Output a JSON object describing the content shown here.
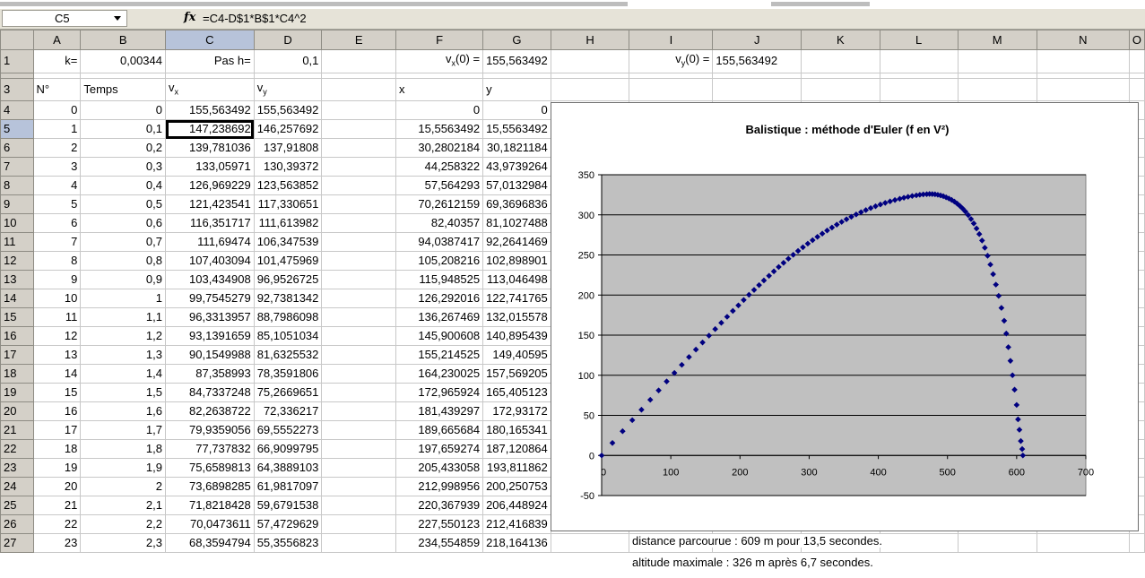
{
  "formula_bar": {
    "cell_ref": "C5",
    "fx_label": "fx",
    "formula": "=C4-D$1*B$1*C4^2"
  },
  "columns": [
    "A",
    "B",
    "C",
    "D",
    "E",
    "F",
    "G",
    "H",
    "I",
    "J",
    "K",
    "L",
    "M",
    "N",
    "O"
  ],
  "row1": {
    "label_k": "k=",
    "value_k": "0,00344",
    "label_h": "Pas h=",
    "value_h": "0,1",
    "label_vx0": "vx(0) =",
    "value_vx0": "155,563492",
    "label_vy0": "vy(0) =",
    "value_vy0": "155,563492"
  },
  "headers": {
    "n": "N°",
    "temps": "Temps",
    "vx": "vx",
    "vy": "vy",
    "x": "x",
    "y": "y"
  },
  "rows": [
    {
      "r": "4",
      "n": "0",
      "t": "0",
      "vx": "155,563492",
      "vy": "155,563492",
      "x": "0",
      "y": "0"
    },
    {
      "r": "5",
      "n": "1",
      "t": "0,1",
      "vx": "147,238692",
      "vy": "146,257692",
      "x": "15,5563492",
      "y": "15,5563492"
    },
    {
      "r": "6",
      "n": "2",
      "t": "0,2",
      "vx": "139,781036",
      "vy": "137,91808",
      "x": "30,2802184",
      "y": "30,1821184"
    },
    {
      "r": "7",
      "n": "3",
      "t": "0,3",
      "vx": "133,05971",
      "vy": "130,39372",
      "x": "44,258322",
      "y": "43,9739264"
    },
    {
      "r": "8",
      "n": "4",
      "t": "0,4",
      "vx": "126,969229",
      "vy": "123,563852",
      "x": "57,564293",
      "y": "57,0132984"
    },
    {
      "r": "9",
      "n": "5",
      "t": "0,5",
      "vx": "121,423541",
      "vy": "117,330651",
      "x": "70,2612159",
      "y": "69,3696836"
    },
    {
      "r": "10",
      "n": "6",
      "t": "0,6",
      "vx": "116,351717",
      "vy": "111,613982",
      "x": "82,40357",
      "y": "81,1027488"
    },
    {
      "r": "11",
      "n": "7",
      "t": "0,7",
      "vx": "111,69474",
      "vy": "106,347539",
      "x": "94,0387417",
      "y": "92,2641469"
    },
    {
      "r": "12",
      "n": "8",
      "t": "0,8",
      "vx": "107,403094",
      "vy": "101,475969",
      "x": "105,208216",
      "y": "102,898901"
    },
    {
      "r": "13",
      "n": "9",
      "t": "0,9",
      "vx": "103,434908",
      "vy": "96,9526725",
      "x": "115,948525",
      "y": "113,046498"
    },
    {
      "r": "14",
      "n": "10",
      "t": "1",
      "vx": "99,7545279",
      "vy": "92,7381342",
      "x": "126,292016",
      "y": "122,741765"
    },
    {
      "r": "15",
      "n": "11",
      "t": "1,1",
      "vx": "96,3313957",
      "vy": "88,7986098",
      "x": "136,267469",
      "y": "132,015578"
    },
    {
      "r": "16",
      "n": "12",
      "t": "1,2",
      "vx": "93,1391659",
      "vy": "85,1051034",
      "x": "145,900608",
      "y": "140,895439"
    },
    {
      "r": "17",
      "n": "13",
      "t": "1,3",
      "vx": "90,1549988",
      "vy": "81,6325532",
      "x": "155,214525",
      "y": "149,40595"
    },
    {
      "r": "18",
      "n": "14",
      "t": "1,4",
      "vx": "87,358993",
      "vy": "78,3591806",
      "x": "164,230025",
      "y": "157,569205"
    },
    {
      "r": "19",
      "n": "15",
      "t": "1,5",
      "vx": "84,7337248",
      "vy": "75,2669651",
      "x": "172,965924",
      "y": "165,405123"
    },
    {
      "r": "20",
      "n": "16",
      "t": "1,6",
      "vx": "82,2638722",
      "vy": "72,336217",
      "x": "181,439297",
      "y": "172,93172"
    },
    {
      "r": "21",
      "n": "17",
      "t": "1,7",
      "vx": "79,9359056",
      "vy": "69,5552273",
      "x": "189,665684",
      "y": "180,165341"
    },
    {
      "r": "22",
      "n": "18",
      "t": "1,8",
      "vx": "77,737832",
      "vy": "66,9099795",
      "x": "197,659274",
      "y": "187,120864"
    },
    {
      "r": "23",
      "n": "19",
      "t": "1,9",
      "vx": "75,6589813",
      "vy": "64,3889103",
      "x": "205,433058",
      "y": "193,811862"
    },
    {
      "r": "24",
      "n": "20",
      "t": "2",
      "vx": "73,6898285",
      "vy": "61,9817097",
      "x": "212,998956",
      "y": "200,250753"
    },
    {
      "r": "25",
      "n": "21",
      "t": "2,1",
      "vx": "71,8218428",
      "vy": "59,6791538",
      "x": "220,367939",
      "y": "206,448924"
    },
    {
      "r": "26",
      "n": "22",
      "t": "2,2",
      "vx": "70,0473611",
      "vy": "57,4729629",
      "x": "227,550123",
      "y": "212,416839"
    },
    {
      "r": "27",
      "n": "23",
      "t": "2,3",
      "vx": "68,3594794",
      "vy": "55,3556823",
      "x": "234,554859",
      "y": "218,164136"
    }
  ],
  "notes": {
    "distance": "distance parcourue : 609 m pour 13,5 secondes.",
    "altitude": "altitude maximale : 326 m après 6,7 secondes."
  },
  "chart_data": {
    "type": "scatter",
    "title": "Balistique : méthode d'Euler (f en V²)",
    "xlim": [
      0,
      700
    ],
    "ylim": [
      -50,
      350
    ],
    "x_ticks": [
      "100",
      "200",
      "300",
      "400",
      "500",
      "600",
      "700"
    ],
    "y_ticks": [
      "-50",
      "0",
      "50",
      "100",
      "150",
      "200",
      "250",
      "300",
      "350"
    ],
    "x_axis_origin_label": "0",
    "grid": "horizontal",
    "plot_background": "#c0c0c0",
    "marker_color": "#000080",
    "points": [
      [
        0,
        0
      ],
      [
        15.6,
        15.6
      ],
      [
        30.3,
        30.2
      ],
      [
        44.3,
        44.0
      ],
      [
        57.6,
        57.0
      ],
      [
        70.3,
        69.4
      ],
      [
        82.4,
        81.1
      ],
      [
        94.0,
        92.3
      ],
      [
        105.2,
        102.9
      ],
      [
        115.9,
        113.0
      ],
      [
        126.3,
        122.7
      ],
      [
        136.3,
        132.0
      ],
      [
        145.9,
        140.9
      ],
      [
        155.2,
        149.4
      ],
      [
        164.2,
        157.6
      ],
      [
        173.0,
        165.4
      ],
      [
        181.4,
        172.9
      ],
      [
        189.7,
        180.2
      ],
      [
        197.7,
        187.1
      ],
      [
        205.4,
        193.8
      ],
      [
        213.0,
        200.3
      ],
      [
        220.4,
        206.4
      ],
      [
        227.6,
        212.4
      ],
      [
        234.6,
        218.2
      ],
      [
        242.0,
        224.0
      ],
      [
        249.0,
        229.5
      ],
      [
        256.0,
        235.0
      ],
      [
        263.0,
        240.2
      ],
      [
        270.0,
        245.3
      ],
      [
        277.0,
        250.2
      ],
      [
        284.0,
        255.0
      ],
      [
        291.0,
        259.6
      ],
      [
        298.0,
        264.1
      ],
      [
        305.0,
        268.4
      ],
      [
        312.0,
        272.6
      ],
      [
        319.0,
        276.6
      ],
      [
        326.0,
        280.5
      ],
      [
        333.0,
        284.2
      ],
      [
        340.0,
        287.8
      ],
      [
        347.0,
        291.2
      ],
      [
        354.0,
        294.5
      ],
      [
        361.0,
        297.6
      ],
      [
        368.0,
        300.5
      ],
      [
        375.0,
        303.3
      ],
      [
        382.0,
        305.9
      ],
      [
        389.0,
        308.4
      ],
      [
        396.0,
        310.7
      ],
      [
        403.0,
        312.9
      ],
      [
        410.0,
        314.9
      ],
      [
        417.0,
        316.8
      ],
      [
        424.0,
        318.5
      ],
      [
        431.0,
        320.0
      ],
      [
        437.0,
        321.3
      ],
      [
        443.0,
        322.5
      ],
      [
        449.0,
        323.5
      ],
      [
        455.0,
        324.3
      ],
      [
        460.0,
        325.0
      ],
      [
        465.0,
        325.5
      ],
      [
        470.0,
        325.8
      ],
      [
        474.0,
        326.0
      ],
      [
        478.0,
        325.9
      ],
      [
        482.0,
        325.6
      ],
      [
        486.0,
        325.0
      ],
      [
        490.0,
        324.2
      ],
      [
        494.0,
        323.2
      ],
      [
        498.0,
        321.9
      ],
      [
        502.0,
        320.4
      ],
      [
        506.0,
        318.6
      ],
      [
        510.0,
        316.5
      ],
      [
        514.0,
        314.0
      ],
      [
        518.0,
        311.1
      ],
      [
        522.0,
        307.8
      ],
      [
        526.0,
        304.0
      ],
      [
        530.0,
        299.7
      ],
      [
        534.0,
        294.8
      ],
      [
        538.0,
        289.3
      ],
      [
        542.0,
        283.0
      ],
      [
        546.0,
        276.0
      ],
      [
        550.0,
        268.0
      ],
      [
        554.0,
        259.0
      ],
      [
        558.0,
        249.0
      ],
      [
        562.0,
        238.0
      ],
      [
        566.0,
        226.0
      ],
      [
        570.0,
        213.0
      ],
      [
        574.0,
        199.0
      ],
      [
        578.0,
        184.0
      ],
      [
        582.0,
        168.0
      ],
      [
        585.0,
        152.0
      ],
      [
        588.0,
        135.0
      ],
      [
        591.0,
        118.0
      ],
      [
        594.0,
        100.0
      ],
      [
        597.0,
        82.0
      ],
      [
        600.0,
        63.0
      ],
      [
        602.0,
        45.0
      ],
      [
        604.0,
        32.0
      ],
      [
        606.0,
        18.0
      ],
      [
        608.0,
        8.0
      ],
      [
        609.0,
        0.0
      ]
    ]
  }
}
